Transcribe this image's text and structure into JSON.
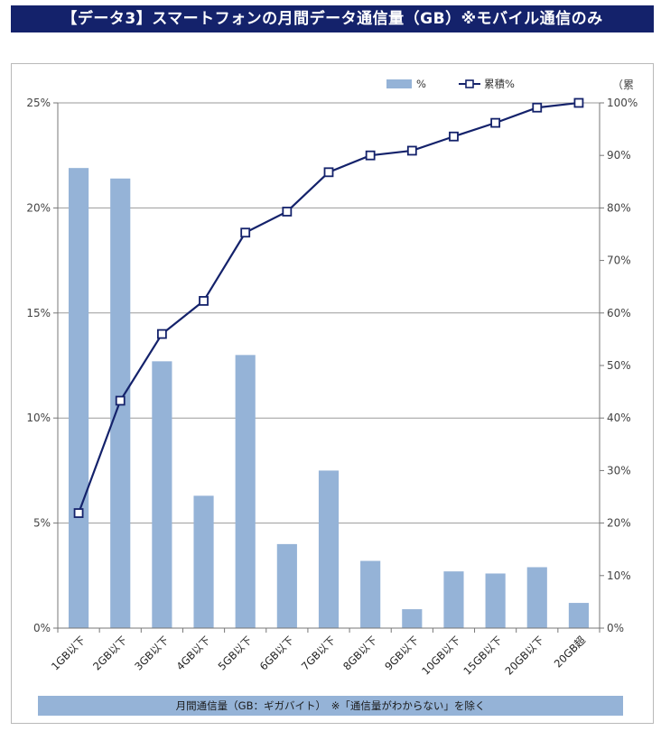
{
  "header": {
    "title": "【データ3】スマートフォンの月間データ通信量（GB）※モバイル通信のみ"
  },
  "chart_data": {
    "type": "bar",
    "categories": [
      "1GB以下",
      "2GB以下",
      "3GB以下",
      "4GB以下",
      "5GB以下",
      "6GB以下",
      "7GB以下",
      "8GB以下",
      "9GB以下",
      "10GB以下",
      "15GB以下",
      "20GB以下",
      "20GB超"
    ],
    "series": [
      {
        "name": "%",
        "type": "bar",
        "axis": "left",
        "values": [
          21.9,
          21.4,
          12.7,
          6.3,
          13.0,
          4.0,
          7.5,
          3.2,
          0.9,
          2.7,
          2.6,
          2.9,
          1.2
        ]
      },
      {
        "name": "累積%",
        "type": "line",
        "axis": "right",
        "values": [
          21.9,
          43.3,
          56.0,
          62.3,
          75.3,
          79.3,
          86.8,
          90.0,
          90.9,
          93.6,
          96.2,
          99.1,
          100.0
        ]
      }
    ],
    "y_left": {
      "ylim": [
        0,
        25
      ],
      "ticks": [
        "0%",
        "5%",
        "10%",
        "15%",
        "20%",
        "25%"
      ]
    },
    "y_right": {
      "ylim": [
        0,
        100
      ],
      "ticks": [
        "0%",
        "10%",
        "20%",
        "30%",
        "40%",
        "50%",
        "60%",
        "70%",
        "80%",
        "90%",
        "100%"
      ],
      "label": "（累"
    },
    "xlabel": "月間通信量（GB：ギガバイト）　※「通信量がわからない」を除く",
    "legend": [
      "%",
      "累積%"
    ],
    "colors": {
      "bar": "#95b3d7",
      "line": "#14226b",
      "grid": "#9a9a9a"
    }
  }
}
